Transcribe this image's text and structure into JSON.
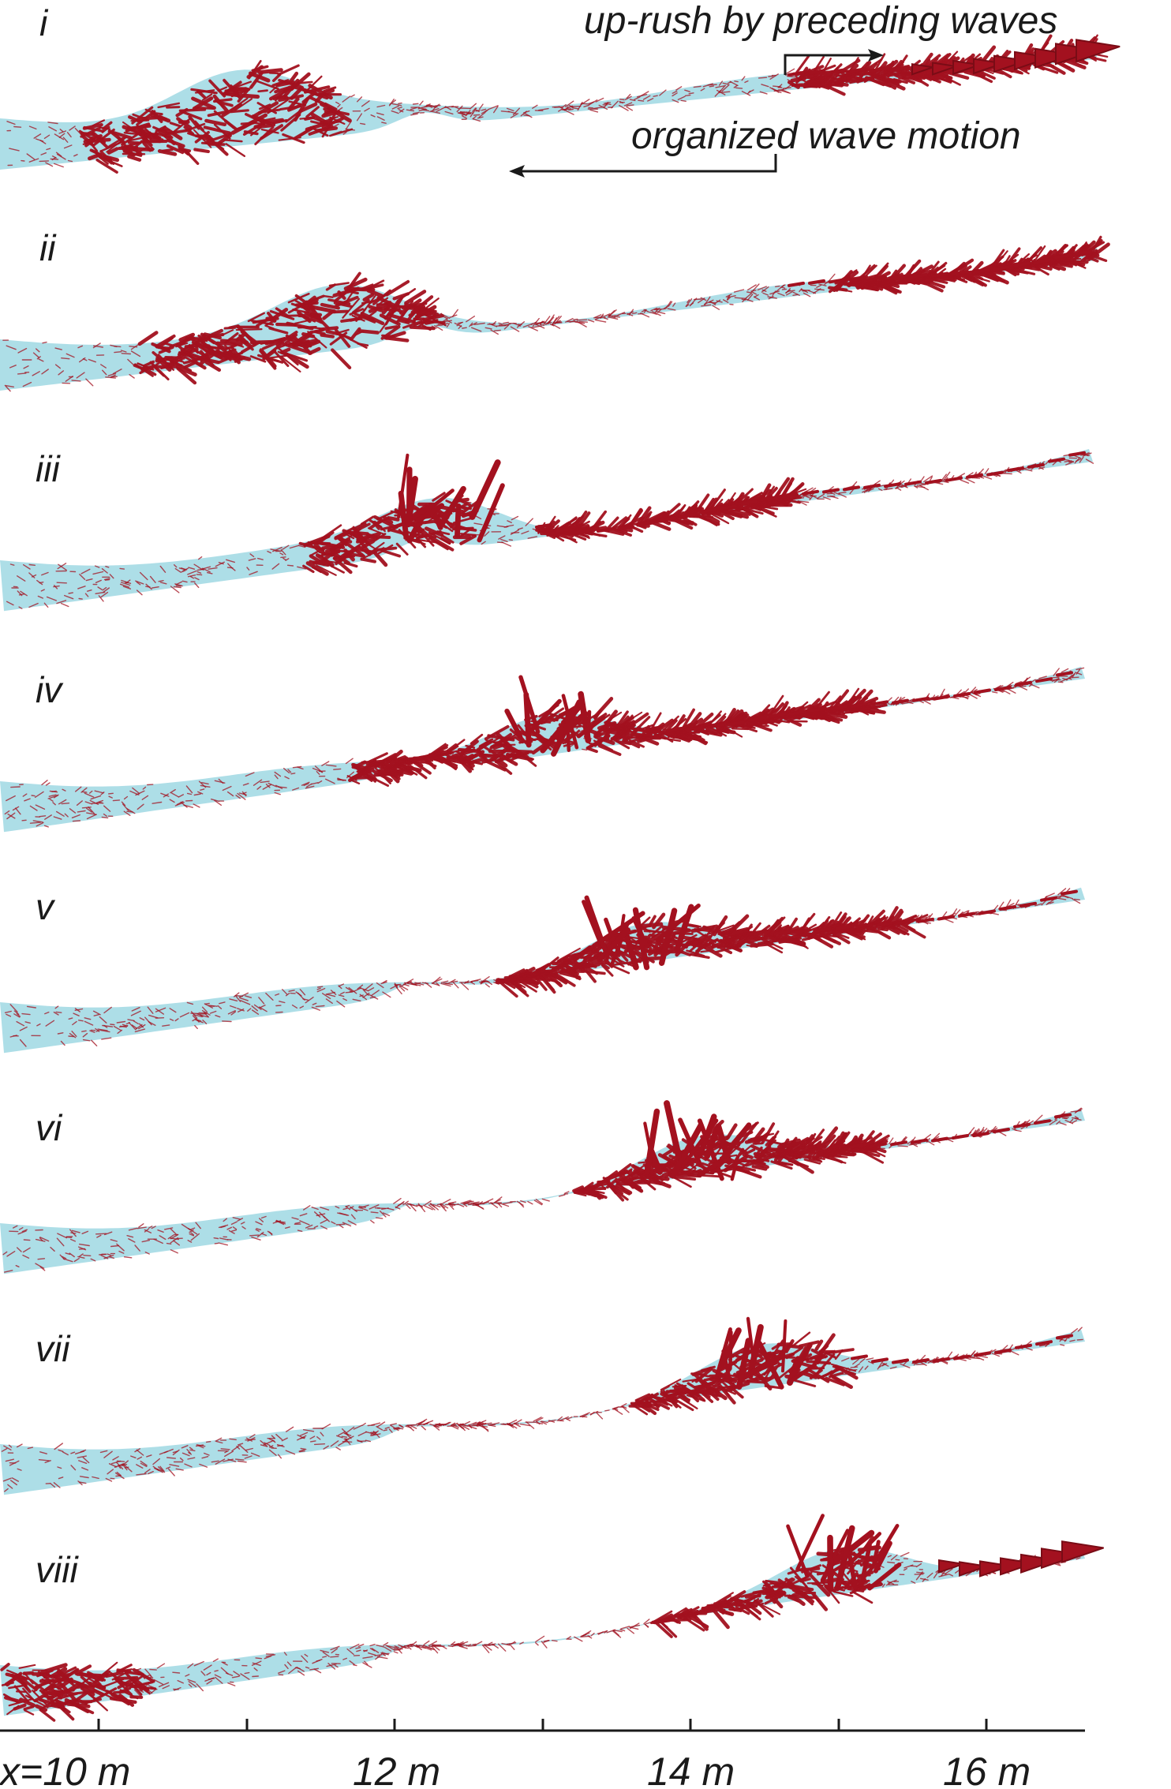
{
  "colors": {
    "water": "#a9dce6",
    "vectors": "#a3111f",
    "vectors_dark": "#7a0c16",
    "ink": "#1a1a1a"
  },
  "annotations": {
    "uprush": "up-rush by preceding waves",
    "organized": "organized wave motion"
  },
  "axis": {
    "tick_labels": [
      "x=10 m",
      "12 m",
      "14 m",
      "16 m"
    ]
  },
  "panels": [
    {
      "label": "i"
    },
    {
      "label": "ii"
    },
    {
      "label": "iii"
    },
    {
      "label": "iv"
    },
    {
      "label": "v"
    },
    {
      "label": "vi"
    },
    {
      "label": "vii"
    },
    {
      "label": "viii"
    }
  ]
}
